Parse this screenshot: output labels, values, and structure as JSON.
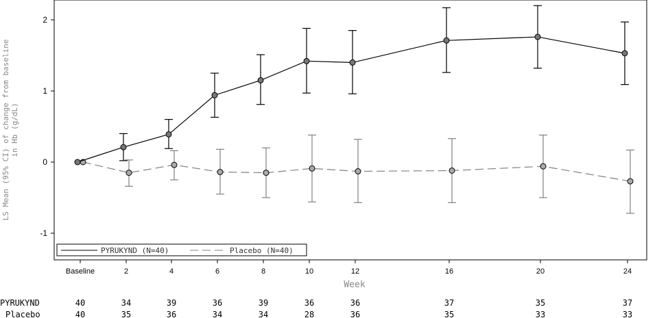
{
  "chart_data": {
    "type": "line",
    "title": "",
    "xlabel": "Week",
    "ylabel_line1": "LS Mean (95% CI) of change from baseline",
    "ylabel_line2": "in Hb (g/dL)",
    "ylim": [
      -1.35,
      2.25
    ],
    "yticks": [
      -1,
      0,
      1,
      2
    ],
    "x_categories": [
      "Baseline",
      "2",
      "4",
      "6",
      "8",
      "10",
      "12",
      "16",
      "20",
      "24"
    ],
    "x_values": [
      0,
      2,
      4,
      6,
      8,
      10,
      12,
      16,
      20,
      24
    ],
    "legend_position": "bottom-left",
    "series": [
      {
        "name": "PYRUKYND (N=40)",
        "color": "#000000",
        "marker_color": "#777777",
        "dash": "solid",
        "values": [
          0.0,
          0.21,
          0.39,
          0.94,
          1.15,
          1.42,
          1.4,
          1.71,
          1.76,
          1.53
        ],
        "ci_lower": [
          null,
          0.02,
          0.19,
          0.63,
          0.81,
          0.97,
          0.96,
          1.26,
          1.32,
          1.09
        ],
        "ci_upper": [
          null,
          0.4,
          0.6,
          1.25,
          1.51,
          1.88,
          1.85,
          2.17,
          2.2,
          1.97
        ]
      },
      {
        "name": "Placebo (N=40)",
        "color": "#808080",
        "marker_color": "#aaaaaa",
        "dash": "dashed",
        "values": [
          0.0,
          -0.15,
          -0.04,
          -0.14,
          -0.15,
          -0.09,
          -0.13,
          -0.12,
          -0.06,
          -0.27
        ],
        "ci_lower": [
          null,
          -0.34,
          -0.25,
          -0.45,
          -0.5,
          -0.56,
          -0.57,
          -0.57,
          -0.5,
          -0.72
        ],
        "ci_upper": [
          null,
          0.03,
          0.16,
          0.18,
          0.2,
          0.38,
          0.32,
          0.33,
          0.38,
          0.17
        ]
      }
    ],
    "at_risk_table": {
      "rows": [
        {
          "label": "PYRUKYND",
          "counts": [
            "40",
            "34",
            "39",
            "36",
            "39",
            "36",
            "36",
            "37",
            "35",
            "37"
          ]
        },
        {
          "label": "Placebo",
          "counts": [
            "40",
            "35",
            "36",
            "34",
            "34",
            "28",
            "36",
            "35",
            "33",
            "33"
          ]
        }
      ]
    }
  }
}
